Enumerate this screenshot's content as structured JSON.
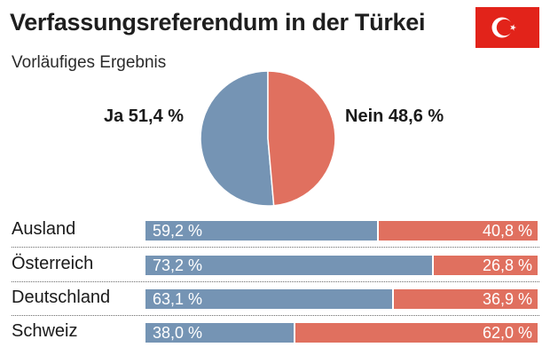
{
  "header": {
    "title": "Verfassungsreferendum in der Türkei",
    "subtitle": "Vorläufiges Ergebnis",
    "flag_icon": "turkey-flag-icon",
    "flag_color": "#e2231a"
  },
  "colors": {
    "ja": "#7594b4",
    "nein": "#e0705f"
  },
  "chart_data": [
    {
      "type": "pie",
      "categories": [
        "Ja",
        "Nein"
      ],
      "values": [
        51.4,
        48.6
      ],
      "labels": [
        "Ja 51,4 %",
        "Nein 48,6 %"
      ]
    },
    {
      "type": "bar",
      "stacked": true,
      "orientation": "horizontal",
      "categories": [
        "Ausland",
        "Österreich",
        "Deutschland",
        "Schweiz"
      ],
      "series": [
        {
          "values": [
            59.2,
            73.2,
            63.1,
            38.0
          ],
          "labels": [
            "59,2 %",
            "73,2 %",
            "63,1 %",
            "38,0 %"
          ]
        },
        {
          "values": [
            40.8,
            26.8,
            36.9,
            62.0
          ],
          "labels": [
            "40,8 %",
            "26,8 %",
            "36,9 %",
            "62,0 %"
          ]
        }
      ]
    }
  ]
}
